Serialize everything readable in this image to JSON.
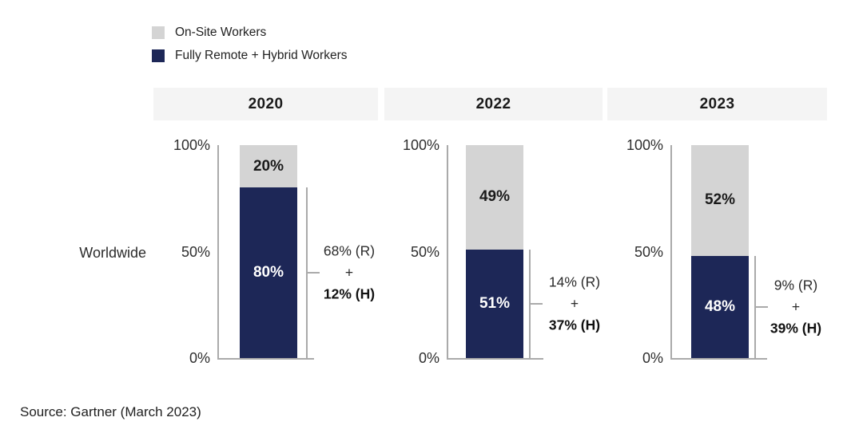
{
  "legend": {
    "items": [
      {
        "label": "On-Site Workers",
        "color": "#d4d4d4"
      },
      {
        "label": "Fully Remote + Hybrid Workers",
        "color": "#1d2757"
      }
    ]
  },
  "row_label": "Worldwide",
  "source": "Source: Gartner (March 2023)",
  "colors": {
    "onsite_gray": "#d4d4d4",
    "remote_hybrid_navy": "#1d2757",
    "header_band": "#f4f4f4",
    "axis_line": "#aaaaaa"
  },
  "chart_data": {
    "type": "bar",
    "subtype": "100%-stacked-column",
    "title": "",
    "categories": [
      "2020",
      "2022",
      "2023"
    ],
    "series": [
      {
        "name": "On-Site Workers",
        "values": [
          20,
          49,
          52
        ],
        "color": "#d4d4d4"
      },
      {
        "name": "Fully Remote + Hybrid Workers",
        "values": [
          80,
          51,
          48
        ],
        "color": "#1d2757"
      }
    ],
    "row_label": "Worldwide",
    "ylim": [
      0,
      100
    ],
    "axis_ticks": [
      "100%",
      "50%",
      "0%"
    ],
    "legend_position": "top-left",
    "grid": false,
    "panels": [
      {
        "year": "2020",
        "onsite_pct": 20,
        "onsite_label": "20%",
        "remote_hybrid_pct": 80,
        "remote_hybrid_label": "80%",
        "annotation_lines": [
          "68% (R)",
          "+",
          "12% (H)"
        ]
      },
      {
        "year": "2022",
        "onsite_pct": 49,
        "onsite_label": "49%",
        "remote_hybrid_pct": 51,
        "remote_hybrid_label": "51%",
        "annotation_lines": [
          "14% (R)",
          "+",
          "37% (H)"
        ]
      },
      {
        "year": "2023",
        "onsite_pct": 52,
        "onsite_label": "52%",
        "remote_hybrid_pct": 48,
        "remote_hybrid_label": "48%",
        "annotation_lines": [
          "9% (R)",
          "+",
          "39% (H)"
        ]
      }
    ]
  }
}
